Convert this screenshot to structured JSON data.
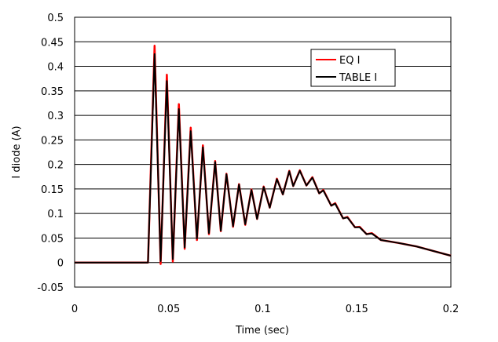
{
  "chart_data": {
    "type": "line",
    "title": "",
    "xlabel": "Time (sec)",
    "ylabel": "I diode (A)",
    "xlim": [
      0,
      0.2
    ],
    "ylim": [
      -0.05,
      0.5
    ],
    "xticks": [
      "0",
      "0.05",
      "0.1",
      "0.15",
      "0.2"
    ],
    "xtick_values": [
      0,
      0.05,
      0.1,
      0.15,
      0.2
    ],
    "yticks": [
      "0.5",
      "0.45",
      "0.4",
      "0.35",
      "0.3",
      "0.25",
      "0.2",
      "0.15",
      "0.1",
      "0.05",
      "0",
      "-0.05"
    ],
    "ytick_values": [
      0.5,
      0.45,
      0.4,
      0.35,
      0.3,
      0.25,
      0.2,
      0.15,
      0.1,
      0.05,
      0,
      -0.05
    ],
    "grid": "horizontal",
    "legend_position": "top-right",
    "series": [
      {
        "name": "EQ I",
        "color": "#ff0000",
        "x": [
          0,
          0.039,
          0.0425,
          0.0457,
          0.049,
          0.0522,
          0.0554,
          0.0585,
          0.0617,
          0.065,
          0.0682,
          0.0714,
          0.0747,
          0.0777,
          0.0807,
          0.0842,
          0.0874,
          0.0907,
          0.094,
          0.097,
          0.1005,
          0.1037,
          0.1075,
          0.1107,
          0.1141,
          0.1162,
          0.1197,
          0.1232,
          0.1264,
          0.13,
          0.1322,
          0.1364,
          0.1385,
          0.1427,
          0.145,
          0.149,
          0.1515,
          0.1552,
          0.158,
          0.1628,
          0.172,
          0.1816,
          0.2
        ],
        "y": [
          0,
          0,
          0.442,
          -0.003,
          0.383,
          0.002,
          0.323,
          0.028,
          0.275,
          0.046,
          0.239,
          0.058,
          0.207,
          0.064,
          0.181,
          0.073,
          0.16,
          0.077,
          0.149,
          0.089,
          0.155,
          0.112,
          0.171,
          0.139,
          0.187,
          0.156,
          0.188,
          0.157,
          0.174,
          0.141,
          0.148,
          0.116,
          0.121,
          0.09,
          0.093,
          0.072,
          0.073,
          0.058,
          0.06,
          0.046,
          0.04,
          0.033,
          0.014
        ]
      },
      {
        "name": "TABLE I",
        "color": "#000000",
        "x": [
          0,
          0.039,
          0.0425,
          0.0457,
          0.049,
          0.0522,
          0.0554,
          0.0585,
          0.0617,
          0.065,
          0.0682,
          0.0714,
          0.0747,
          0.0777,
          0.0807,
          0.0842,
          0.0874,
          0.0907,
          0.094,
          0.097,
          0.1005,
          0.1037,
          0.1075,
          0.1107,
          0.1141,
          0.1162,
          0.1197,
          0.1232,
          0.1264,
          0.13,
          0.1322,
          0.1364,
          0.1385,
          0.1427,
          0.145,
          0.149,
          0.1515,
          0.1552,
          0.158,
          0.1628,
          0.172,
          0.1816,
          0.2
        ],
        "y": [
          0,
          0,
          0.425,
          0.003,
          0.37,
          0.007,
          0.313,
          0.031,
          0.268,
          0.049,
          0.235,
          0.06,
          0.205,
          0.065,
          0.18,
          0.074,
          0.159,
          0.078,
          0.148,
          0.089,
          0.154,
          0.112,
          0.17,
          0.139,
          0.186,
          0.156,
          0.187,
          0.157,
          0.173,
          0.141,
          0.147,
          0.116,
          0.12,
          0.09,
          0.092,
          0.072,
          0.072,
          0.058,
          0.059,
          0.046,
          0.04,
          0.033,
          0.014
        ]
      }
    ]
  }
}
